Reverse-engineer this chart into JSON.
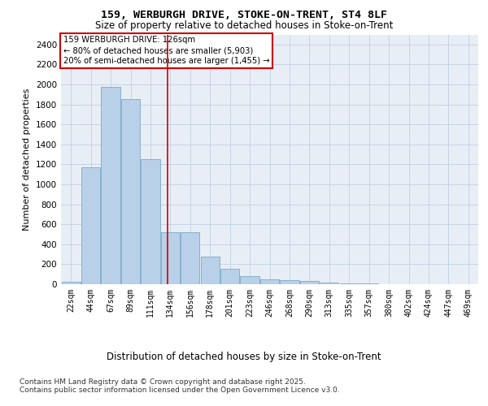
{
  "title1": "159, WERBURGH DRIVE, STOKE-ON-TRENT, ST4 8LF",
  "title2": "Size of property relative to detached houses in Stoke-on-Trent",
  "xlabel": "Distribution of detached houses by size in Stoke-on-Trent",
  "ylabel": "Number of detached properties",
  "categories": [
    "22sqm",
    "44sqm",
    "67sqm",
    "89sqm",
    "111sqm",
    "134sqm",
    "156sqm",
    "178sqm",
    "201sqm",
    "223sqm",
    "246sqm",
    "268sqm",
    "290sqm",
    "313sqm",
    "335sqm",
    "357sqm",
    "380sqm",
    "402sqm",
    "424sqm",
    "447sqm",
    "469sqm"
  ],
  "values": [
    25,
    1170,
    1975,
    1855,
    1250,
    520,
    520,
    275,
    155,
    85,
    45,
    40,
    35,
    20,
    8,
    5,
    2,
    2,
    1,
    1,
    1
  ],
  "bar_color": "#b8d0e8",
  "bar_edgecolor": "#7aaac8",
  "vline_x": 4.85,
  "vline_color": "#cc0000",
  "annotation_line1": "159 WERBURGH DRIVE: 126sqm",
  "annotation_line2": "← 80% of detached houses are smaller (5,903)",
  "annotation_line3": "20% of semi-detached houses are larger (1,455) →",
  "annotation_box_color": "#cc0000",
  "ylim": [
    0,
    2500
  ],
  "yticks": [
    0,
    200,
    400,
    600,
    800,
    1000,
    1200,
    1400,
    1600,
    1800,
    2000,
    2200,
    2400
  ],
  "grid_color": "#c8d4e4",
  "background_color": "#e8eef6",
  "footer1": "Contains HM Land Registry data © Crown copyright and database right 2025.",
  "footer2": "Contains public sector information licensed under the Open Government Licence v3.0."
}
